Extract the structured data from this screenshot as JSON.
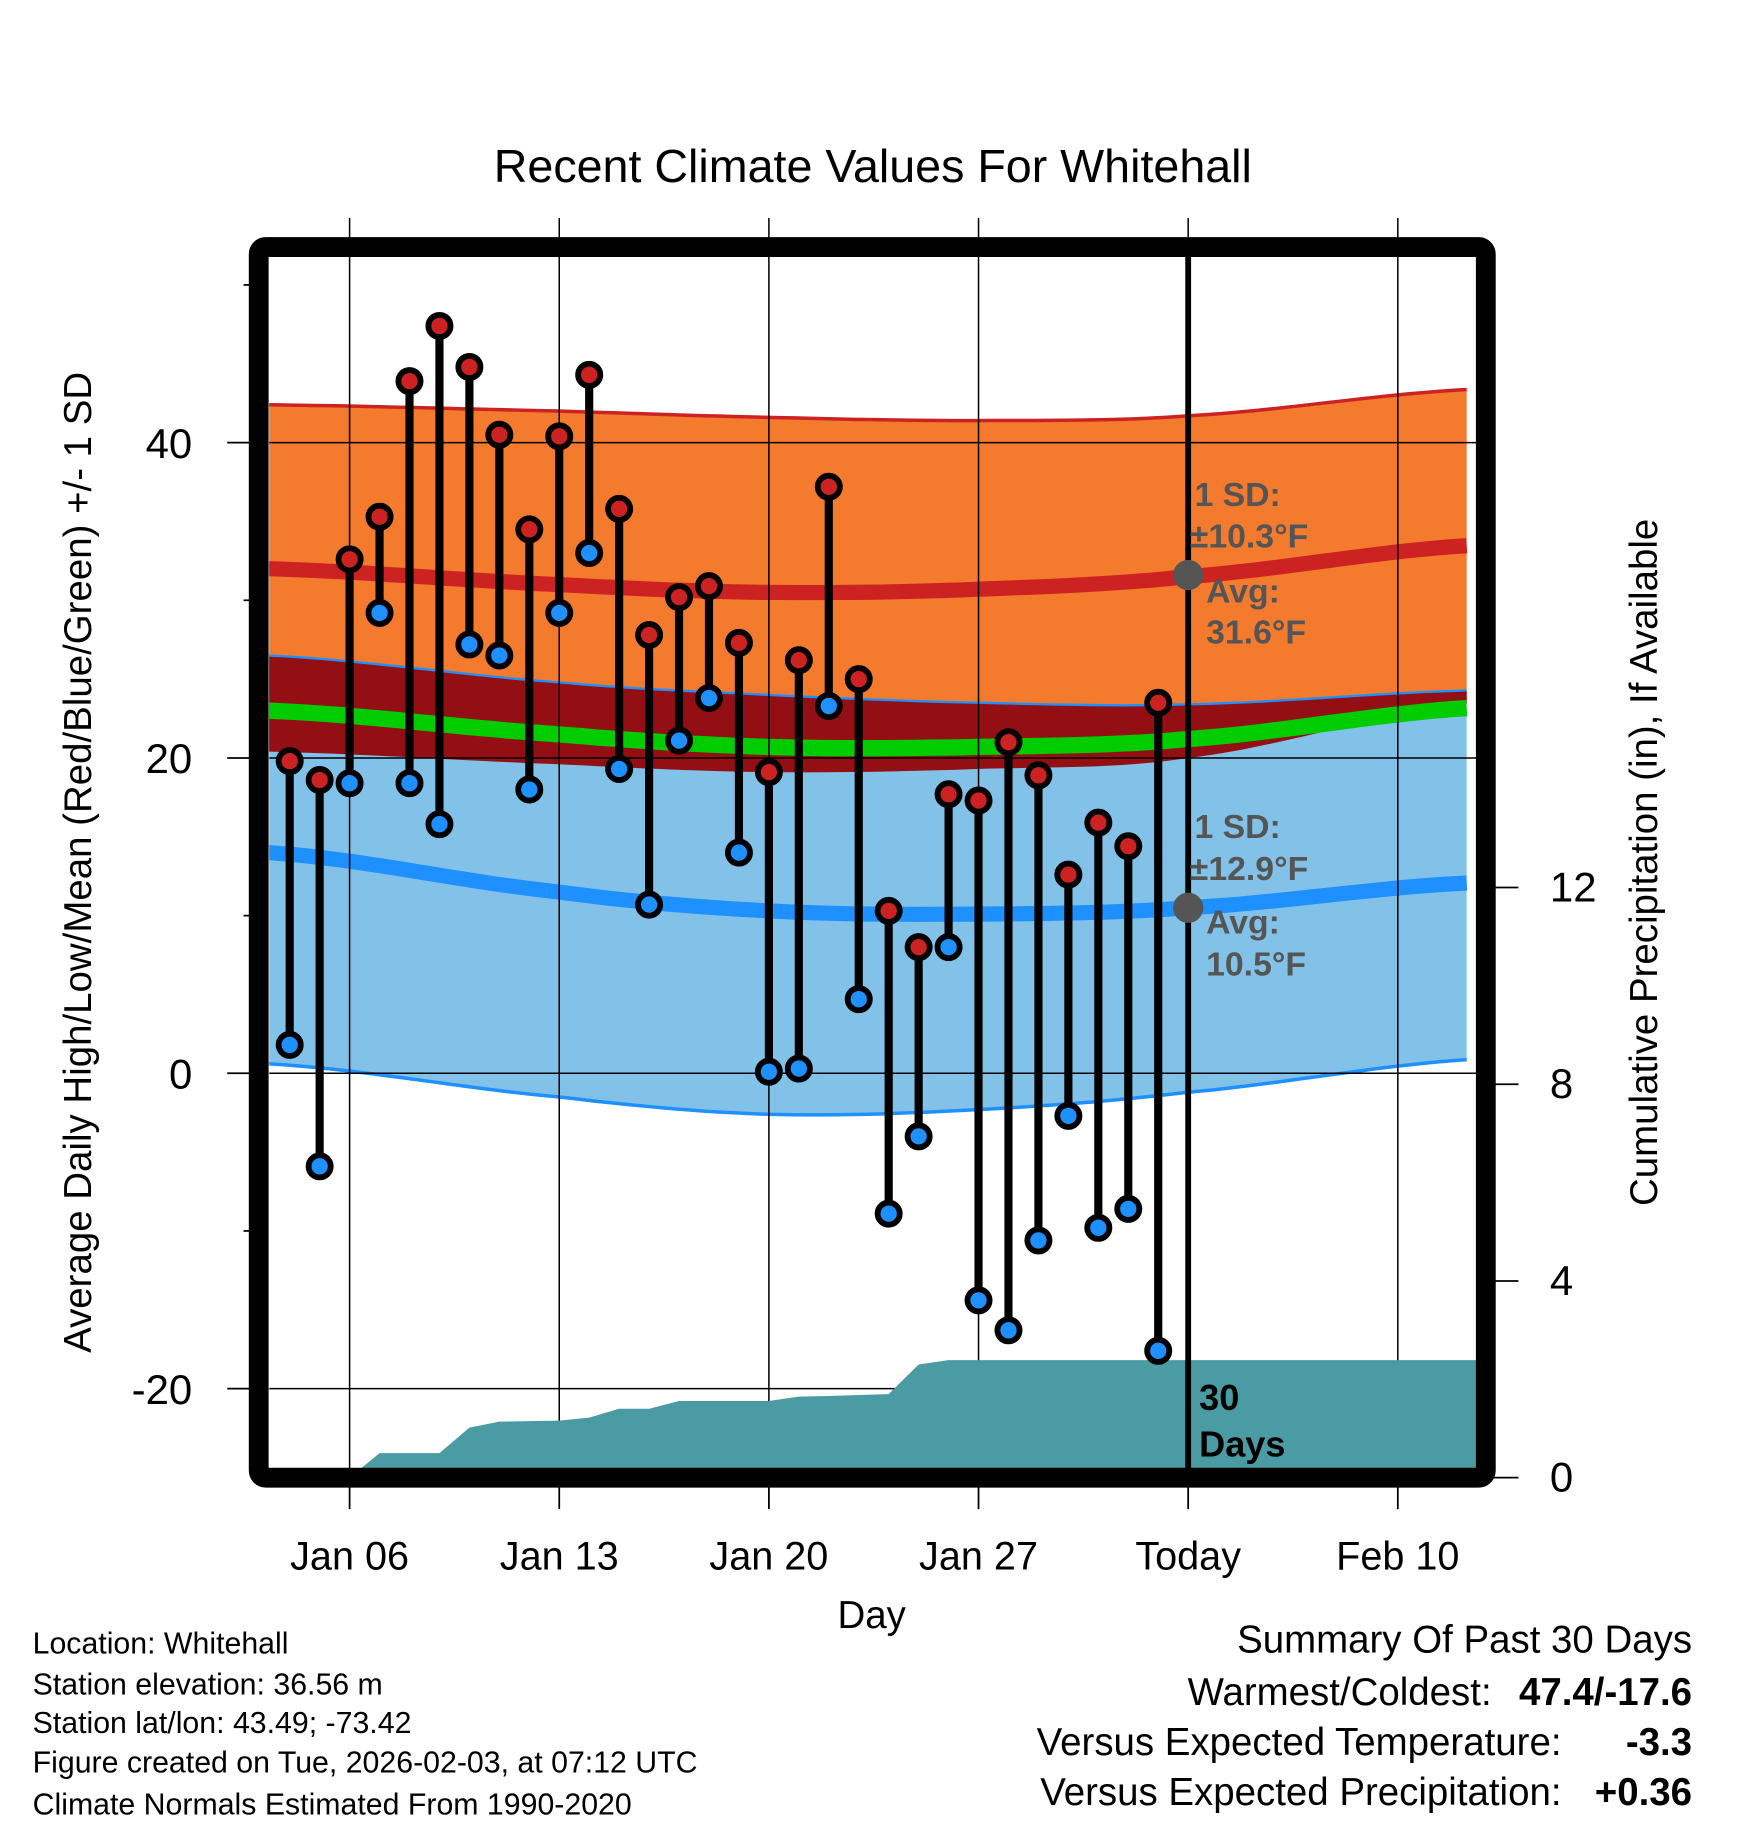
{
  "chart_data": {
    "type": "line",
    "title": "Recent Climate Values For Whitehall",
    "xlabel": "Day",
    "ylabel": "Average Daily High/Low/Mean (Red/Blue/Green) +/- 1 SD",
    "ylabel_right": "Cumulative Precipitation (in), If Available",
    "ylim": [
      -25,
      51.9
    ],
    "ylim_right": [
      0,
      18.2
    ],
    "xlim_day_of_year": [
      3.3,
      43.6
    ],
    "y_ticks": [
      "40",
      "20",
      "0",
      "-20"
    ],
    "y_tick_values": [
      40,
      20,
      0,
      -20
    ],
    "y_minor_tick_values": [
      50,
      30,
      10,
      -10
    ],
    "y_right_ticks": [
      "12",
      "8",
      "4",
      "0"
    ],
    "y_right_tick_values": [
      12,
      8,
      4,
      0
    ],
    "x_ticks": [
      "Jan 06",
      "Jan 13",
      "Jan 20",
      "Jan 27",
      "Today",
      "Feb 10"
    ],
    "x_tick_days": [
      6,
      13,
      20,
      27,
      34,
      41
    ],
    "grid": true,
    "today_day": 34,
    "days": [
      4,
      5,
      6,
      7,
      8,
      9,
      10,
      11,
      12,
      13,
      14,
      15,
      16,
      17,
      18,
      19,
      20,
      21,
      22,
      23,
      24,
      25,
      26,
      27,
      28,
      29,
      30,
      31,
      32,
      33
    ],
    "series": [
      {
        "name": "Daily High",
        "color": "#CC2222",
        "values": [
          19.8,
          18.6,
          32.6,
          35.3,
          43.9,
          47.4,
          44.8,
          40.5,
          34.5,
          40.4,
          44.3,
          35.8,
          27.8,
          30.2,
          30.9,
          27.3,
          19.1,
          26.2,
          37.2,
          25.0,
          10.3,
          8.0,
          17.7,
          17.3,
          21.0,
          18.9,
          12.6,
          15.9,
          14.4,
          23.5
        ]
      },
      {
        "name": "Daily Low",
        "color": "#1E90FF",
        "values": [
          1.8,
          -5.9,
          18.4,
          29.2,
          18.4,
          15.8,
          27.2,
          26.5,
          18.0,
          29.2,
          33.0,
          19.3,
          10.7,
          21.1,
          23.8,
          14.0,
          0.1,
          0.3,
          23.3,
          4.7,
          -8.9,
          -4.0,
          8.0,
          -14.4,
          -16.3,
          -10.6,
          -2.7,
          -9.8,
          -8.6,
          -17.6
        ]
      },
      {
        "name": "Cumulative Precipitation (in)",
        "color": "#4A9BA3",
        "values": [
          0,
          0,
          0,
          0.5,
          0.5,
          0.5,
          1.02,
          1.14,
          1.15,
          1.16,
          1.22,
          1.4,
          1.4,
          1.56,
          1.56,
          1.56,
          1.56,
          1.65,
          1.66,
          1.68,
          1.7,
          2.3,
          2.39,
          2.39,
          2.39,
          2.39,
          2.39,
          2.39,
          2.39,
          2.39
        ]
      }
    ],
    "normals": {
      "days": [
        3.3,
        13,
        20,
        27,
        34,
        43.6
      ],
      "high_upper": [
        42.4,
        42.0,
        41.6,
        41.4,
        41.7,
        43.4
      ],
      "high_avg": [
        32.0,
        31.0,
        30.5,
        30.7,
        31.5,
        33.5
      ],
      "high_lower": [
        20.4,
        19.6,
        19.1,
        19.3,
        20.0,
        23.5
      ],
      "mean": [
        23.0,
        21.5,
        20.7,
        20.7,
        21.2,
        23.2
      ],
      "low_upper": [
        26.5,
        24.8,
        24.0,
        23.5,
        23.4,
        24.3
      ],
      "low_avg": [
        14.0,
        11.5,
        10.3,
        10.1,
        10.5,
        12.1
      ],
      "low_lower": [
        0.6,
        -1.5,
        -2.6,
        -2.3,
        -1.2,
        0.9
      ]
    },
    "annotations": {
      "high_sd_label": "1 SD:",
      "high_sd_value": "±10.3°F",
      "high_avg_label": "Avg:",
      "high_avg_value": "31.6°F",
      "high_avg_num": 31.6,
      "low_sd_label": "1 SD:",
      "low_sd_value": "±12.9°F",
      "low_avg_label": "Avg:",
      "low_avg_value": "10.5°F",
      "low_avg_num": 10.5,
      "precip_period_line1": "30",
      "precip_period_line2": "Days"
    },
    "colors": {
      "high_band": "#F47A2E",
      "overlap_band": "#930F14",
      "low_band": "#82C2E8",
      "mean_line": "#00CC00",
      "high_line": "#CC2222",
      "low_line": "#1E90FF",
      "precip": "#4A9BA3",
      "annotation": "#555555"
    }
  },
  "footer": {
    "location": "Location: Whitehall",
    "elevation": "Station elevation: 36.56 m",
    "latlon": "Station lat/lon: 43.49; -73.42",
    "created": "Figure created on Tue, 2026-02-03, at 07:12 UTC",
    "normals": "Climate Normals Estimated From 1990-2020"
  },
  "summary": {
    "title": "Summary Of Past 30 Days",
    "warm_cold_label": "Warmest/Coldest:",
    "warm_cold_value": "47.4/-17.6",
    "temp_label": "Versus Expected Temperature:",
    "temp_value": "-3.3",
    "temp_color": "#1E90FF",
    "precip_label": "Versus Expected Precipitation:",
    "precip_value": "+0.36",
    "precip_color": "#00BB00"
  }
}
